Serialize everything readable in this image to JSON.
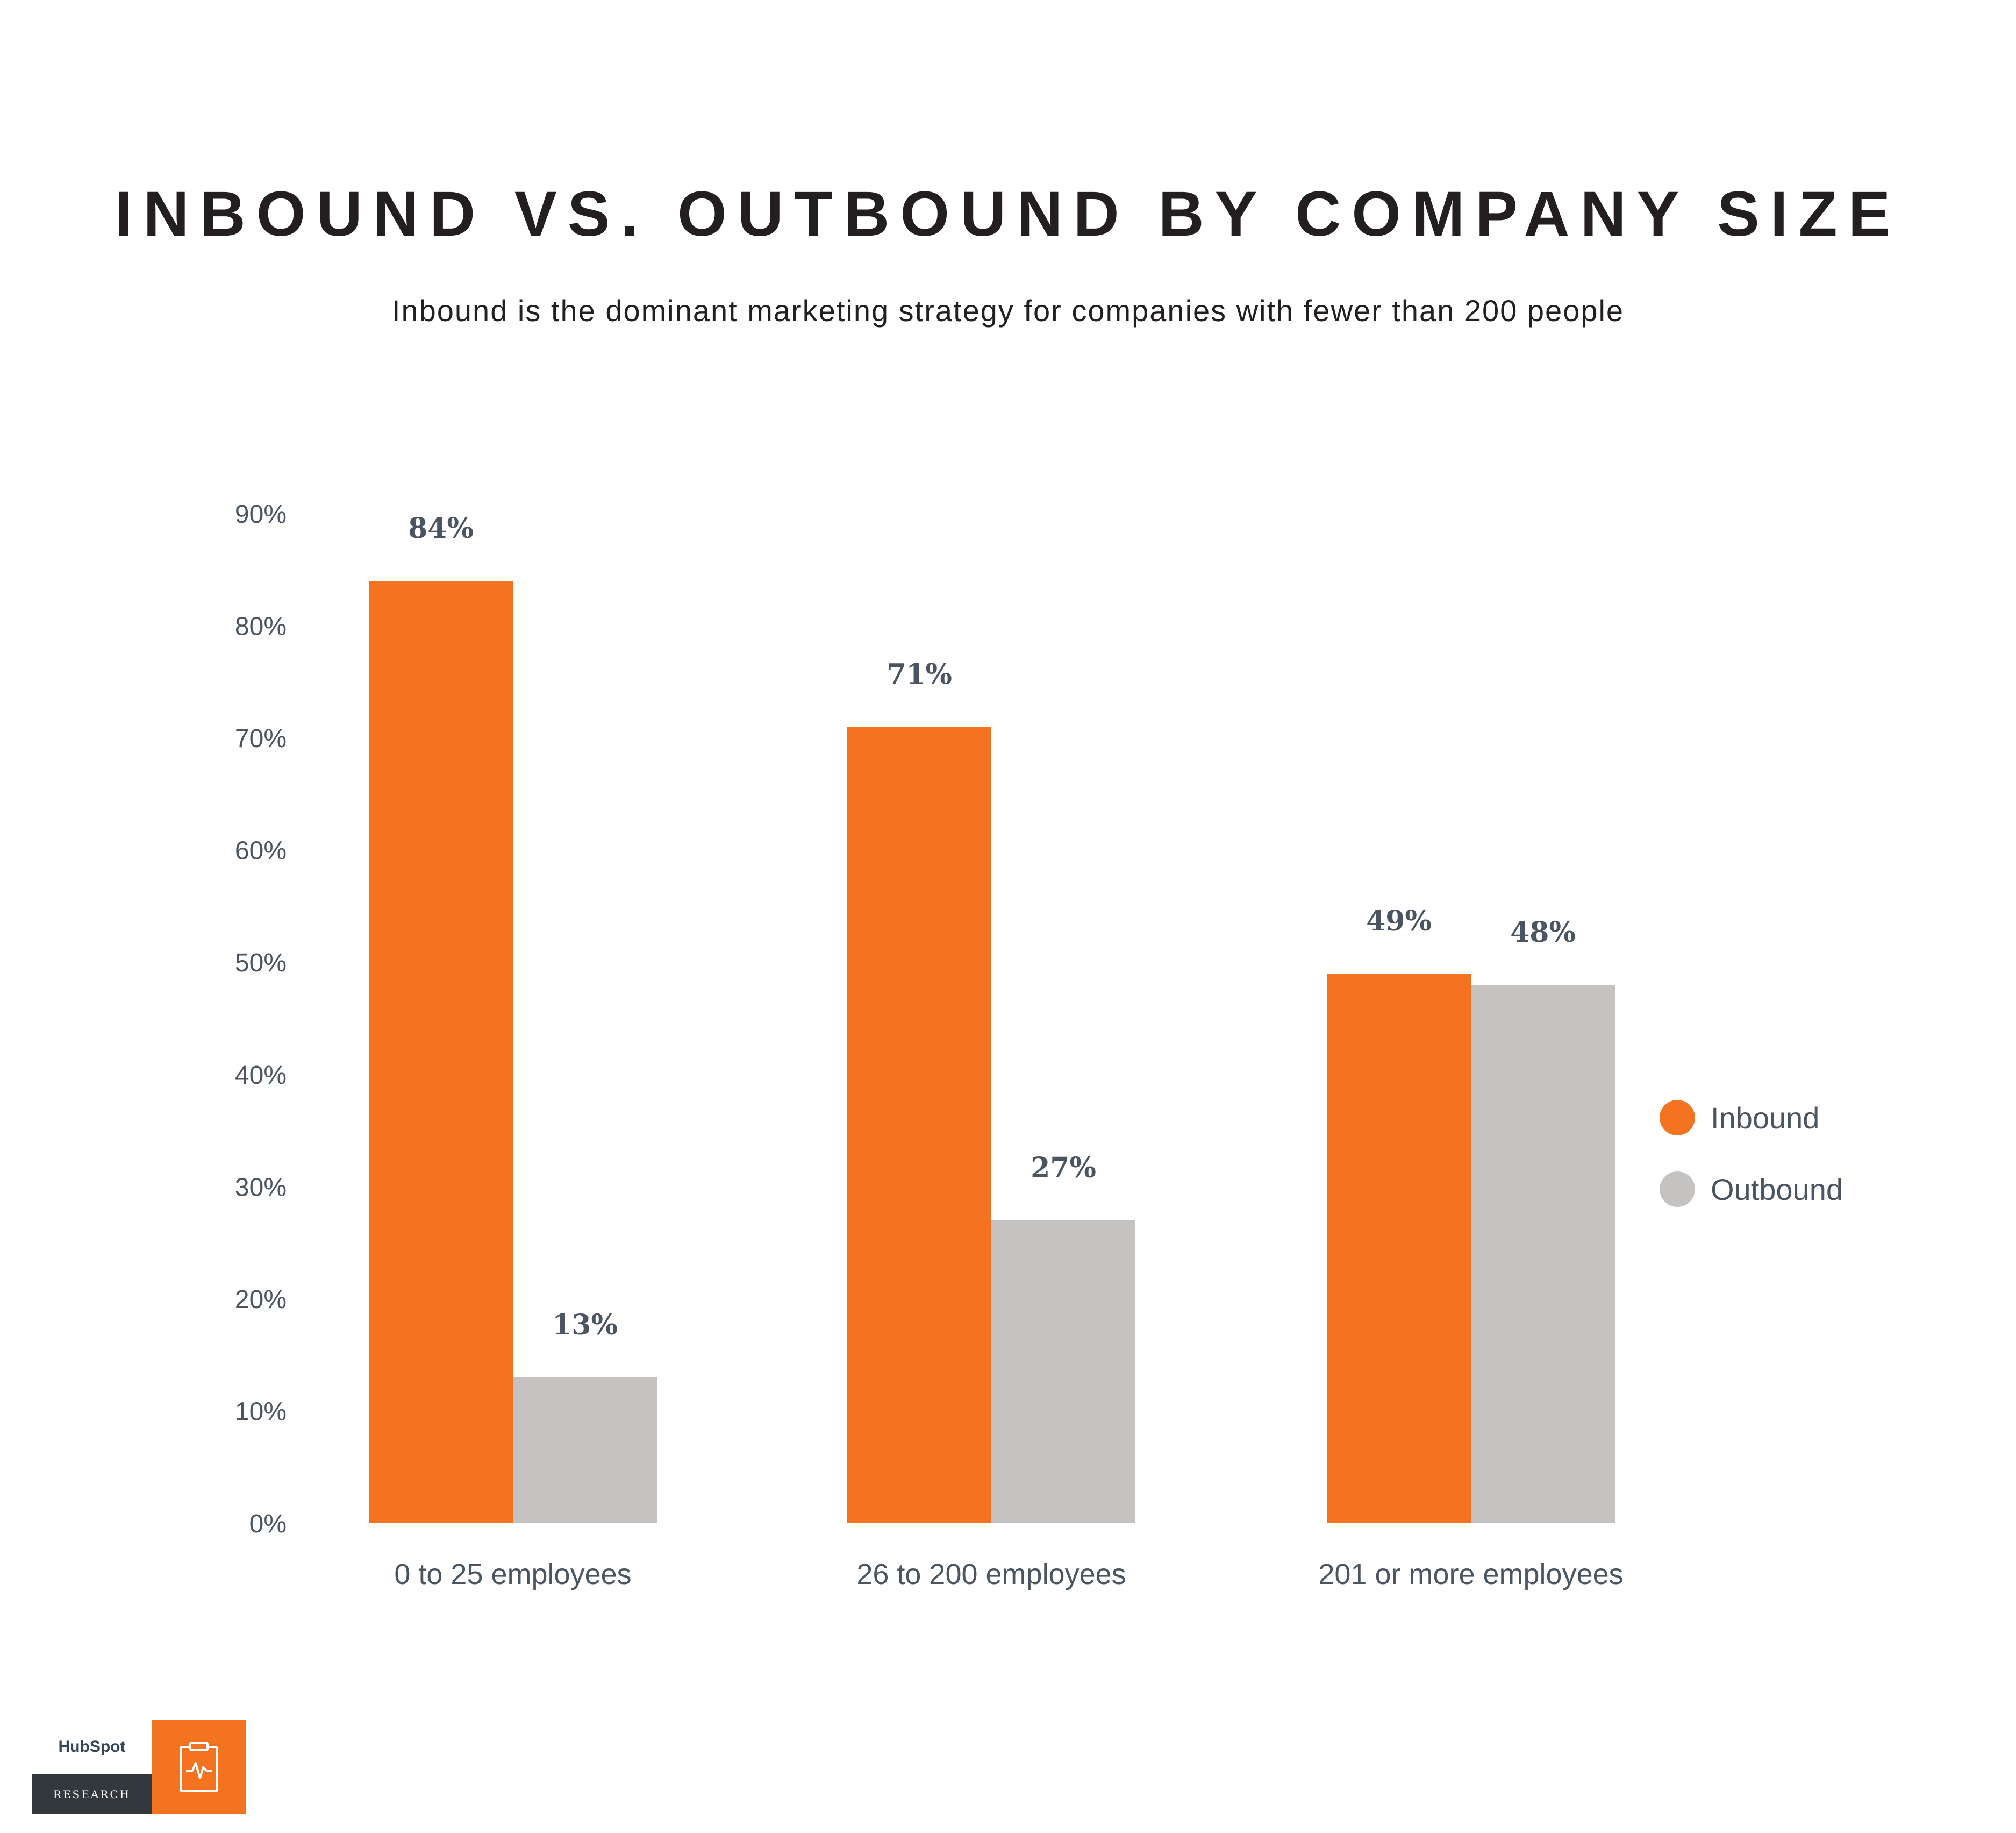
{
  "header": {
    "title": "INBOUND VS. OUTBOUND BY COMPANY SIZE",
    "subtitle": "Inbound is the dominant marketing strategy for companies with fewer than 200 people"
  },
  "chart_data": {
    "type": "bar",
    "categories": [
      "0 to 25 employees",
      "26 to 200 employees",
      "201 or more employees"
    ],
    "series": [
      {
        "name": "Inbound",
        "values": [
          84,
          71,
          49
        ],
        "labels": [
          "84%",
          "71%",
          "49%"
        ],
        "color": "#f37321"
      },
      {
        "name": "Outbound",
        "values": [
          13,
          27,
          48
        ],
        "labels": [
          "13%",
          "27%",
          "48%"
        ],
        "color": "#c4c3c1"
      }
    ],
    "y_ticks": [
      "0%",
      "10%",
      "20%",
      "30%",
      "40%",
      "50%",
      "60%",
      "70%",
      "80%",
      "90%"
    ],
    "ylim": [
      0,
      90
    ],
    "grid": false,
    "legend": "right"
  },
  "logo": {
    "brand": "HubSpot",
    "label": "RESEARCH",
    "icon": "clipboard-pulse-icon"
  }
}
